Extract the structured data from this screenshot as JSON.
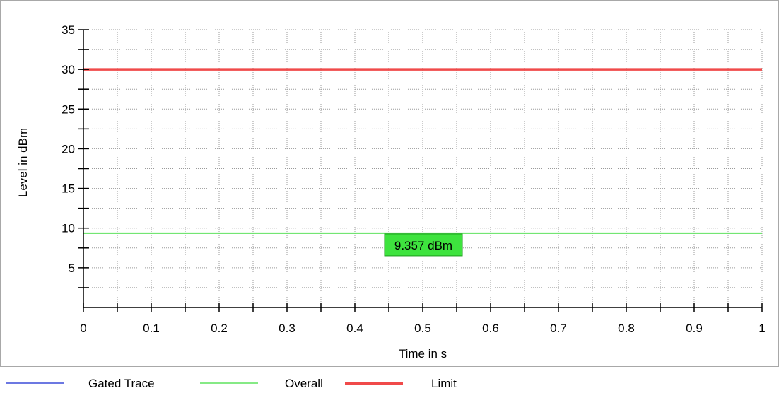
{
  "chart_data": {
    "type": "line",
    "title": "",
    "xlabel": "Time in s",
    "ylabel": "Level in dBm",
    "xlim": [
      0,
      1
    ],
    "ylim": [
      0,
      35
    ],
    "x_ticks": [
      "0",
      "0.1",
      "0.2",
      "0.3",
      "0.4",
      "0.5",
      "0.6",
      "0.7",
      "0.8",
      "0.9",
      "1"
    ],
    "x_tick_values": [
      0,
      0.1,
      0.2,
      0.3,
      0.4,
      0.5,
      0.6,
      0.7,
      0.8,
      0.9,
      1
    ],
    "y_ticks": [
      "5",
      "10",
      "15",
      "20",
      "25",
      "30",
      "35"
    ],
    "y_tick_values": [
      5,
      10,
      15,
      20,
      25,
      30,
      35
    ],
    "grid": true,
    "legend_position": "bottom-left",
    "series": [
      {
        "name": "Gated Trace",
        "color": "#3b4bd8",
        "x": [],
        "y": []
      },
      {
        "name": "Overall",
        "color": "#5fe35f",
        "x": [
          0,
          1
        ],
        "y": [
          9.357,
          9.357
        ]
      },
      {
        "name": "Limit",
        "color": "#f04a4a",
        "x": [
          0,
          1
        ],
        "y": [
          30,
          30
        ]
      }
    ],
    "annotations": [
      {
        "text": "9.357 dBm",
        "x": 0.5,
        "y": 9.357,
        "background": "#3ee33e"
      }
    ]
  }
}
